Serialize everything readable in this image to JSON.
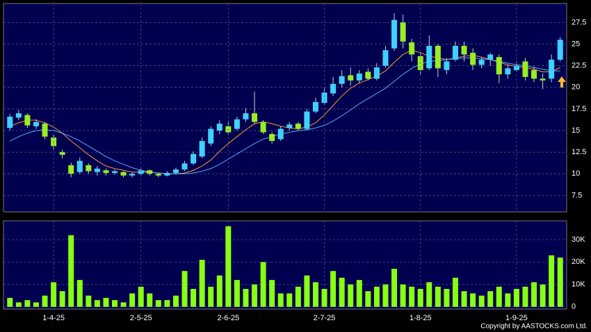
{
  "chart_data": [
    {
      "type": "candlestick",
      "open": [
        15.3,
        16.5,
        16.8,
        15.5,
        15.8,
        14.2,
        12.5,
        11.0,
        10.2,
        11.0,
        10.2,
        10.4,
        10.1,
        10.2,
        9.8,
        10.0,
        10.4,
        10.0,
        9.8,
        10.1,
        10.5,
        11.2,
        12.0,
        13.5,
        15.0,
        15.5,
        15.2,
        16.3,
        17.0,
        16.0,
        14.6,
        14.0,
        15.3,
        15.8,
        15.2,
        17.2,
        18.2,
        19.3,
        20.4,
        21.4,
        20.8,
        21.8,
        21.0,
        22.5,
        24.5,
        27.5,
        25.2,
        23.6,
        22.2,
        24.8,
        22.0,
        23.2,
        24.8,
        24.0,
        22.6,
        23.2,
        23.5,
        21.5,
        22.0,
        23.0,
        22.0,
        21.0,
        21.0,
        23.2
      ],
      "high": [
        16.9,
        17.4,
        17.0,
        16.3,
        16.0,
        14.5,
        12.8,
        11.3,
        11.9,
        11.2,
        10.9,
        10.6,
        10.5,
        10.3,
        10.2,
        10.6,
        10.5,
        10.1,
        10.3,
        10.7,
        11.5,
        12.6,
        14.2,
        15.5,
        16.2,
        16.0,
        16.6,
        17.6,
        19.5,
        16.2,
        14.8,
        15.5,
        16.0,
        16.0,
        17.5,
        18.8,
        20.0,
        21.2,
        22.0,
        22.3,
        22.0,
        22.2,
        22.8,
        24.8,
        28.6,
        28.4,
        25.6,
        24.0,
        26.0,
        25.0,
        23.4,
        25.3,
        25.3,
        24.5,
        23.5,
        24.0,
        23.8,
        22.6,
        23.0,
        23.4,
        22.4,
        21.6,
        23.8,
        25.8
      ],
      "low": [
        15.0,
        16.2,
        15.3,
        15.2,
        14.0,
        12.8,
        11.8,
        9.6,
        10.0,
        10.0,
        9.8,
        9.8,
        9.9,
        9.6,
        9.6,
        9.8,
        9.8,
        9.6,
        9.7,
        9.9,
        10.3,
        11.0,
        11.8,
        13.2,
        14.6,
        14.5,
        15.0,
        16.0,
        15.8,
        14.6,
        13.5,
        13.8,
        15.0,
        15.0,
        15.0,
        17.0,
        18.0,
        19.0,
        20.0,
        20.2,
        20.5,
        20.8,
        20.8,
        22.3,
        24.2,
        24.5,
        23.0,
        21.5,
        22.0,
        21.2,
        21.5,
        23.0,
        23.0,
        22.0,
        22.2,
        22.5,
        20.5,
        21.0,
        21.8,
        20.8,
        20.6,
        19.8,
        20.6,
        23.0
      ],
      "close": [
        16.6,
        17.0,
        15.6,
        16.0,
        14.3,
        13.2,
        12.2,
        10.0,
        11.5,
        10.3,
        10.6,
        10.1,
        10.3,
        9.8,
        10.0,
        10.4,
        10.0,
        9.8,
        10.1,
        10.5,
        11.2,
        12.3,
        13.8,
        15.2,
        15.8,
        14.8,
        16.3,
        17.0,
        16.0,
        14.8,
        13.8,
        15.2,
        15.7,
        15.2,
        17.2,
        18.3,
        19.4,
        20.4,
        21.3,
        20.8,
        21.6,
        21.0,
        22.3,
        24.3,
        27.8,
        25.3,
        23.8,
        22.0,
        24.8,
        22.2,
        23.0,
        24.8,
        23.8,
        22.6,
        23.2,
        23.8,
        21.5,
        22.2,
        22.5,
        21.2,
        21.0,
        20.8,
        23.2,
        25.5
      ],
      "up_color": "#40d0ff",
      "down_color": "#99ee22",
      "series": [
        {
          "color": "#ff9933",
          "values": [
            15.5,
            15.9,
            16.2,
            16.2,
            15.9,
            15.4,
            14.7,
            13.8,
            13.0,
            12.2,
            11.5,
            10.9,
            10.6,
            10.4,
            10.2,
            10.2,
            10.2,
            10.1,
            10.0,
            10.0,
            10.1,
            10.4,
            10.9,
            11.6,
            12.6,
            13.5,
            14.3,
            15.1,
            15.8,
            16.0,
            15.8,
            15.5,
            15.3,
            15.2,
            15.4,
            15.9,
            16.8,
            17.9,
            19.0,
            19.9,
            20.5,
            20.9,
            21.3,
            21.9,
            22.9,
            23.8,
            24.3,
            24.0,
            23.6,
            23.4,
            23.2,
            23.4,
            23.6,
            23.7,
            23.5,
            23.2,
            22.9,
            22.6,
            22.4,
            22.3,
            22.1,
            21.8,
            21.8,
            22.3
          ]
        },
        {
          "color": "#55aaff",
          "values": [
            13.8,
            14.3,
            14.7,
            15.0,
            15.1,
            15.0,
            14.7,
            14.3,
            13.8,
            13.2,
            12.6,
            12.0,
            11.5,
            11.1,
            10.7,
            10.4,
            10.2,
            10.1,
            10.0,
            10.0,
            10.0,
            10.1,
            10.3,
            10.6,
            11.1,
            11.7,
            12.3,
            12.9,
            13.5,
            14.0,
            14.3,
            14.6,
            14.8,
            15.0,
            15.1,
            15.3,
            15.6,
            16.1,
            16.7,
            17.4,
            18.1,
            18.7,
            19.3,
            19.9,
            20.7,
            21.5,
            22.2,
            22.7,
            23.0,
            23.1,
            23.2,
            23.3,
            23.4,
            23.4,
            23.3,
            23.2,
            23.0,
            22.8,
            22.6,
            22.5,
            22.3,
            22.1,
            21.9,
            21.9
          ]
        }
      ],
      "ylim": [
        5.6,
        29.7
      ],
      "yticks": [
        7.5,
        10,
        12.5,
        15,
        17.5,
        20,
        22.5,
        25,
        27.5
      ],
      "grid": true
    },
    {
      "type": "bar",
      "categories": [
        null,
        null,
        null,
        null,
        null,
        "1-4-25",
        null,
        null,
        null,
        null,
        null,
        null,
        null,
        null,
        null,
        "2-5-25",
        null,
        null,
        null,
        null,
        null,
        null,
        null,
        null,
        null,
        "2-6-25",
        null,
        null,
        null,
        null,
        null,
        null,
        null,
        null,
        null,
        null,
        "2-7-25",
        null,
        null,
        null,
        null,
        null,
        null,
        null,
        null,
        null,
        null,
        "1-8-25",
        null,
        null,
        null,
        null,
        null,
        null,
        null,
        null,
        null,
        null,
        "1-9-25",
        null,
        null,
        null,
        null,
        null
      ],
      "values": [
        4000,
        2000,
        3000,
        2000,
        5000,
        11000,
        7000,
        32000,
        12000,
        5000,
        3000,
        4000,
        3000,
        2000,
        6000,
        9000,
        6000,
        3000,
        3000,
        5000,
        16000,
        8000,
        21000,
        9000,
        14000,
        36000,
        12000,
        8000,
        10000,
        20000,
        12000,
        6000,
        6000,
        9000,
        14000,
        11000,
        8000,
        16000,
        13000,
        10000,
        12000,
        7000,
        9000,
        10000,
        17000,
        10000,
        9000,
        8000,
        11000,
        9000,
        8000,
        13000,
        7000,
        6000,
        5000,
        7000,
        9000,
        6000,
        8000,
        9000,
        11000,
        10000,
        23000,
        22000
      ],
      "color": "#88ff11",
      "ylim": [
        -1000,
        38400
      ],
      "yticks": [
        0,
        {
          "value": 10000,
          "label": "10K"
        },
        {
          "value": 20000,
          "label": "20K"
        },
        {
          "value": 30000,
          "label": "30K"
        }
      ],
      "grid": true,
      "footer": "Copyright by AASTOCKS.com Ltd."
    }
  ]
}
